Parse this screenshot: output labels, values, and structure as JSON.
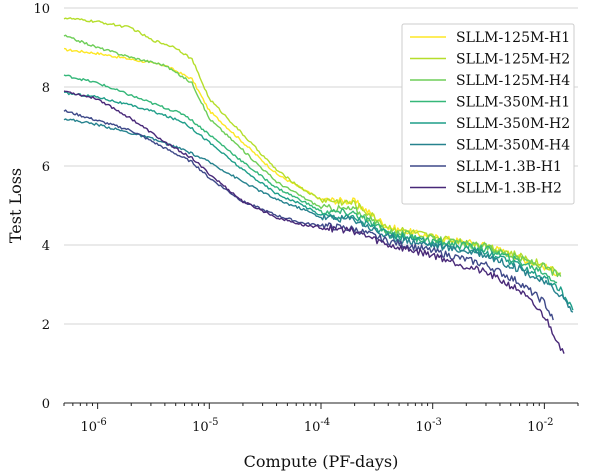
{
  "chart_data": {
    "type": "line",
    "title": "",
    "xlabel": "Compute (PF-days)",
    "ylabel": "Test Loss",
    "x_scale": "log",
    "xlim": [
      5e-07,
      0.02
    ],
    "ylim": [
      0,
      10
    ],
    "grid": "horizontal",
    "legend_position": "top-right",
    "x_ticks": [
      {
        "value": 1e-06,
        "base": "10",
        "exp": "-6"
      },
      {
        "value": 1e-05,
        "base": "10",
        "exp": "-5"
      },
      {
        "value": 0.0001,
        "base": "10",
        "exp": "-4"
      },
      {
        "value": 0.001,
        "base": "10",
        "exp": "-3"
      },
      {
        "value": 0.01,
        "base": "10",
        "exp": "-2"
      }
    ],
    "y_ticks": [
      0,
      2,
      4,
      6,
      8,
      10
    ],
    "series": [
      {
        "name": "SLLM-125M-H1",
        "color": "#fde725",
        "points": [
          [
            5e-07,
            8.95
          ],
          [
            1e-06,
            8.85
          ],
          [
            2e-06,
            8.7
          ],
          [
            4e-06,
            8.55
          ],
          [
            7e-06,
            8.2
          ],
          [
            1e-05,
            7.4
          ],
          [
            2e-05,
            6.6
          ],
          [
            4e-05,
            5.8
          ],
          [
            7e-05,
            5.4
          ],
          [
            0.0001,
            5.15
          ],
          [
            0.0002,
            5.1
          ],
          [
            0.0004,
            4.45
          ],
          [
            0.001,
            4.2
          ],
          [
            0.003,
            4.0
          ],
          [
            0.007,
            3.6
          ],
          [
            0.01,
            3.45
          ],
          [
            0.014,
            3.25
          ]
        ]
      },
      {
        "name": "SLLM-125M-H2",
        "color": "#b5de2b",
        "points": [
          [
            5e-07,
            9.75
          ],
          [
            1e-06,
            9.65
          ],
          [
            2e-06,
            9.5
          ],
          [
            3e-06,
            9.2
          ],
          [
            5e-06,
            9.0
          ],
          [
            7e-06,
            8.7
          ],
          [
            1e-05,
            7.7
          ],
          [
            2e-05,
            6.8
          ],
          [
            4e-05,
            5.9
          ],
          [
            7e-05,
            5.4
          ],
          [
            0.0001,
            5.15
          ],
          [
            0.0002,
            5.05
          ],
          [
            0.0004,
            4.45
          ],
          [
            0.001,
            4.2
          ],
          [
            0.003,
            4.0
          ],
          [
            0.007,
            3.65
          ],
          [
            0.01,
            3.5
          ],
          [
            0.014,
            3.3
          ]
        ]
      },
      {
        "name": "SLLM-125M-H4",
        "color": "#6ece58",
        "points": [
          [
            5e-07,
            9.3
          ],
          [
            1e-06,
            9.0
          ],
          [
            2e-06,
            8.75
          ],
          [
            4e-06,
            8.55
          ],
          [
            7e-06,
            8.1
          ],
          [
            1e-05,
            7.2
          ],
          [
            2e-05,
            6.4
          ],
          [
            4e-05,
            5.6
          ],
          [
            7e-05,
            5.2
          ],
          [
            0.0001,
            4.95
          ],
          [
            0.0002,
            4.9
          ],
          [
            0.0004,
            4.35
          ],
          [
            0.001,
            4.15
          ],
          [
            0.003,
            3.95
          ],
          [
            0.007,
            3.6
          ],
          [
            0.01,
            3.45
          ],
          [
            0.014,
            3.2
          ]
        ]
      },
      {
        "name": "SLLM-350M-H1",
        "color": "#35b779",
        "points": [
          [
            5e-07,
            8.3
          ],
          [
            1e-06,
            8.1
          ],
          [
            3e-06,
            7.6
          ],
          [
            6e-06,
            7.3
          ],
          [
            1e-05,
            6.8
          ],
          [
            2e-05,
            6.1
          ],
          [
            4e-05,
            5.45
          ],
          [
            7e-05,
            5.1
          ],
          [
            0.0001,
            4.85
          ],
          [
            0.0002,
            4.8
          ],
          [
            0.0004,
            4.3
          ],
          [
            0.001,
            4.1
          ],
          [
            0.003,
            3.9
          ],
          [
            0.007,
            3.5
          ],
          [
            0.01,
            3.3
          ],
          [
            0.013,
            3.05
          ]
        ]
      },
      {
        "name": "SLLM-350M-H2",
        "color": "#1f9e89",
        "points": [
          [
            5e-07,
            7.85
          ],
          [
            1e-06,
            7.75
          ],
          [
            3e-06,
            7.4
          ],
          [
            6e-06,
            7.1
          ],
          [
            1e-05,
            6.6
          ],
          [
            2e-05,
            5.9
          ],
          [
            4e-05,
            5.3
          ],
          [
            7e-05,
            5.0
          ],
          [
            0.0001,
            4.75
          ],
          [
            0.0002,
            4.7
          ],
          [
            0.0004,
            4.25
          ],
          [
            0.001,
            4.05
          ],
          [
            0.003,
            3.8
          ],
          [
            0.007,
            3.4
          ],
          [
            0.01,
            3.15
          ],
          [
            0.014,
            2.85
          ],
          [
            0.018,
            2.35
          ]
        ]
      },
      {
        "name": "SLLM-350M-H4",
        "color": "#26828e",
        "points": [
          [
            5e-07,
            7.2
          ],
          [
            1e-06,
            7.05
          ],
          [
            3e-06,
            6.7
          ],
          [
            6e-06,
            6.4
          ],
          [
            1e-05,
            6.1
          ],
          [
            2e-05,
            5.6
          ],
          [
            4e-05,
            5.15
          ],
          [
            7e-05,
            4.9
          ],
          [
            0.0001,
            4.7
          ],
          [
            0.0002,
            4.65
          ],
          [
            0.0004,
            4.2
          ],
          [
            0.001,
            4.0
          ],
          [
            0.003,
            3.75
          ],
          [
            0.007,
            3.3
          ],
          [
            0.01,
            3.05
          ],
          [
            0.014,
            2.75
          ],
          [
            0.018,
            2.3
          ]
        ]
      },
      {
        "name": "SLLM-1.3B-H1",
        "color": "#3e4989",
        "points": [
          [
            5e-07,
            7.4
          ],
          [
            1e-06,
            7.15
          ],
          [
            2e-06,
            6.9
          ],
          [
            4e-06,
            6.45
          ],
          [
            7e-06,
            6.1
          ],
          [
            1e-05,
            5.7
          ],
          [
            2e-05,
            5.1
          ],
          [
            4e-05,
            4.75
          ],
          [
            7e-05,
            4.55
          ],
          [
            0.0001,
            4.5
          ],
          [
            0.0002,
            4.4
          ],
          [
            0.0004,
            4.1
          ],
          [
            0.001,
            3.85
          ],
          [
            0.003,
            3.5
          ],
          [
            0.006,
            3.05
          ],
          [
            0.01,
            2.55
          ],
          [
            0.012,
            2.1
          ]
        ]
      },
      {
        "name": "SLLM-1.3B-H2",
        "color": "#482878",
        "points": [
          [
            5e-07,
            7.9
          ],
          [
            1e-06,
            7.7
          ],
          [
            2e-06,
            7.2
          ],
          [
            4e-06,
            6.6
          ],
          [
            7e-06,
            6.2
          ],
          [
            1e-05,
            5.8
          ],
          [
            2e-05,
            5.1
          ],
          [
            4e-05,
            4.7
          ],
          [
            7e-05,
            4.5
          ],
          [
            0.0001,
            4.45
          ],
          [
            0.0002,
            4.35
          ],
          [
            0.0004,
            4.0
          ],
          [
            0.001,
            3.75
          ],
          [
            0.003,
            3.3
          ],
          [
            0.006,
            2.85
          ],
          [
            0.01,
            2.2
          ],
          [
            0.013,
            1.6
          ],
          [
            0.015,
            1.25
          ]
        ]
      }
    ]
  }
}
